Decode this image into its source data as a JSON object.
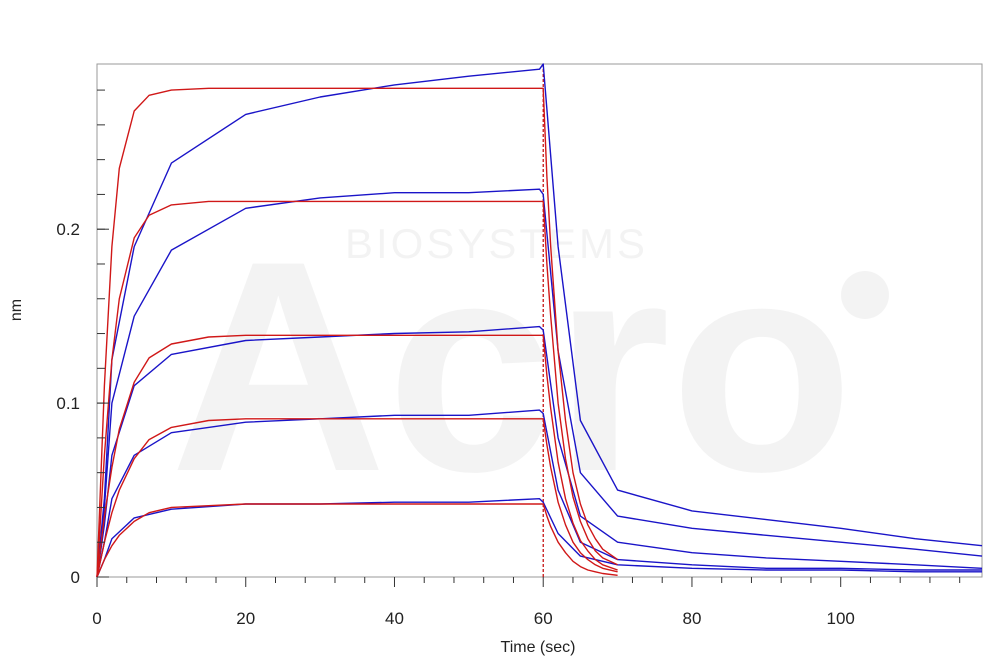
{
  "chart_data": {
    "type": "line",
    "title": "",
    "xlabel": "Time (sec)",
    "ylabel": "nm",
    "xlim": [
      0,
      119
    ],
    "ylim": [
      0,
      0.295
    ],
    "x_ticks": [
      0,
      20,
      40,
      60,
      80,
      100
    ],
    "x_tick_labels": [
      "0",
      "20",
      "40",
      "60",
      "80",
      "100"
    ],
    "y_ticks": [
      0,
      0.1,
      0.2
    ],
    "y_tick_labels": [
      "0",
      "0.1",
      "0.2"
    ],
    "grid": false,
    "legend": "none",
    "dissociation_start": 60,
    "watermark": "Acro BIOSYSTEMS",
    "colors": {
      "measured": "#1a14c8",
      "fit": "#d01818",
      "marker": "#c00000"
    },
    "measured_series": [
      {
        "x": [
          0,
          1,
          2,
          5,
          10,
          20,
          30,
          40,
          50,
          59.5,
          60,
          62,
          65,
          70,
          80,
          90,
          100,
          110,
          119
        ],
        "y": [
          0,
          0.045,
          0.125,
          0.19,
          0.238,
          0.266,
          0.276,
          0.283,
          0.288,
          0.292,
          0.295,
          0.19,
          0.09,
          0.05,
          0.038,
          0.033,
          0.028,
          0.022,
          0.018
        ]
      },
      {
        "x": [
          0,
          1,
          2,
          5,
          10,
          20,
          30,
          40,
          50,
          59.5,
          60,
          62,
          65,
          70,
          80,
          90,
          100,
          110,
          119
        ],
        "y": [
          0,
          0.04,
          0.1,
          0.15,
          0.188,
          0.212,
          0.218,
          0.221,
          0.221,
          0.223,
          0.22,
          0.13,
          0.06,
          0.035,
          0.028,
          0.024,
          0.02,
          0.016,
          0.012
        ]
      },
      {
        "x": [
          0,
          1,
          2,
          5,
          10,
          20,
          30,
          40,
          50,
          59.5,
          60,
          62,
          65,
          70,
          80,
          90,
          100,
          110,
          119
        ],
        "y": [
          0,
          0.03,
          0.07,
          0.11,
          0.128,
          0.136,
          0.138,
          0.14,
          0.141,
          0.144,
          0.142,
          0.08,
          0.035,
          0.02,
          0.014,
          0.011,
          0.009,
          0.007,
          0.005
        ]
      },
      {
        "x": [
          0,
          1,
          2,
          5,
          10,
          20,
          30,
          40,
          50,
          59.5,
          60,
          62,
          65,
          70,
          80,
          90,
          100,
          110,
          119
        ],
        "y": [
          0,
          0.02,
          0.045,
          0.07,
          0.083,
          0.089,
          0.091,
          0.093,
          0.093,
          0.096,
          0.094,
          0.05,
          0.02,
          0.01,
          0.007,
          0.005,
          0.005,
          0.004,
          0.004
        ]
      },
      {
        "x": [
          0,
          1,
          2,
          5,
          10,
          20,
          30,
          40,
          50,
          59.5,
          60,
          62,
          65,
          70,
          80,
          90,
          100,
          110,
          119
        ],
        "y": [
          0,
          0.01,
          0.022,
          0.034,
          0.039,
          0.042,
          0.042,
          0.043,
          0.043,
          0.045,
          0.043,
          0.025,
          0.012,
          0.007,
          0.005,
          0.004,
          0.004,
          0.003,
          0.003
        ]
      }
    ],
    "fit_series": [
      {
        "x": [
          0,
          1,
          2,
          3,
          5,
          7,
          10,
          15,
          20,
          59.8,
          60,
          60.5,
          61,
          62,
          63,
          64,
          65,
          66,
          67,
          68,
          70
        ],
        "y": [
          0,
          0.11,
          0.19,
          0.235,
          0.268,
          0.277,
          0.28,
          0.281,
          0.281,
          0.281,
          0.281,
          0.23,
          0.19,
          0.13,
          0.09,
          0.06,
          0.042,
          0.03,
          0.022,
          0.016,
          0.01
        ]
      },
      {
        "x": [
          0,
          1,
          2,
          3,
          5,
          7,
          10,
          15,
          20,
          59.8,
          60,
          60.5,
          61,
          62,
          63,
          64,
          65,
          66,
          67,
          68,
          70
        ],
        "y": [
          0,
          0.07,
          0.125,
          0.16,
          0.195,
          0.208,
          0.214,
          0.216,
          0.216,
          0.216,
          0.216,
          0.18,
          0.15,
          0.1,
          0.068,
          0.046,
          0.032,
          0.022,
          0.015,
          0.011,
          0.007
        ]
      },
      {
        "x": [
          0,
          1,
          2,
          3,
          5,
          7,
          10,
          15,
          20,
          59.8,
          60,
          60.5,
          61,
          62,
          63,
          64,
          65,
          66,
          67,
          68,
          70
        ],
        "y": [
          0,
          0.035,
          0.063,
          0.085,
          0.112,
          0.126,
          0.134,
          0.138,
          0.139,
          0.139,
          0.139,
          0.116,
          0.097,
          0.066,
          0.045,
          0.031,
          0.021,
          0.015,
          0.01,
          0.007,
          0.004
        ]
      },
      {
        "x": [
          0,
          1,
          2,
          3,
          5,
          7,
          10,
          15,
          20,
          59.8,
          60,
          60.5,
          61,
          62,
          63,
          64,
          65,
          66,
          67,
          68,
          70
        ],
        "y": [
          0,
          0.02,
          0.037,
          0.05,
          0.068,
          0.079,
          0.086,
          0.09,
          0.091,
          0.091,
          0.091,
          0.076,
          0.063,
          0.043,
          0.03,
          0.02,
          0.014,
          0.01,
          0.007,
          0.005,
          0.003
        ]
      },
      {
        "x": [
          0,
          1,
          2,
          3,
          5,
          7,
          10,
          15,
          20,
          59.8,
          60,
          60.5,
          61,
          62,
          63,
          64,
          65,
          66,
          67,
          68,
          70
        ],
        "y": [
          0,
          0.01,
          0.018,
          0.024,
          0.032,
          0.037,
          0.04,
          0.041,
          0.042,
          0.042,
          0.042,
          0.035,
          0.029,
          0.02,
          0.014,
          0.009,
          0.006,
          0.004,
          0.003,
          0.002,
          0.001
        ]
      }
    ]
  }
}
